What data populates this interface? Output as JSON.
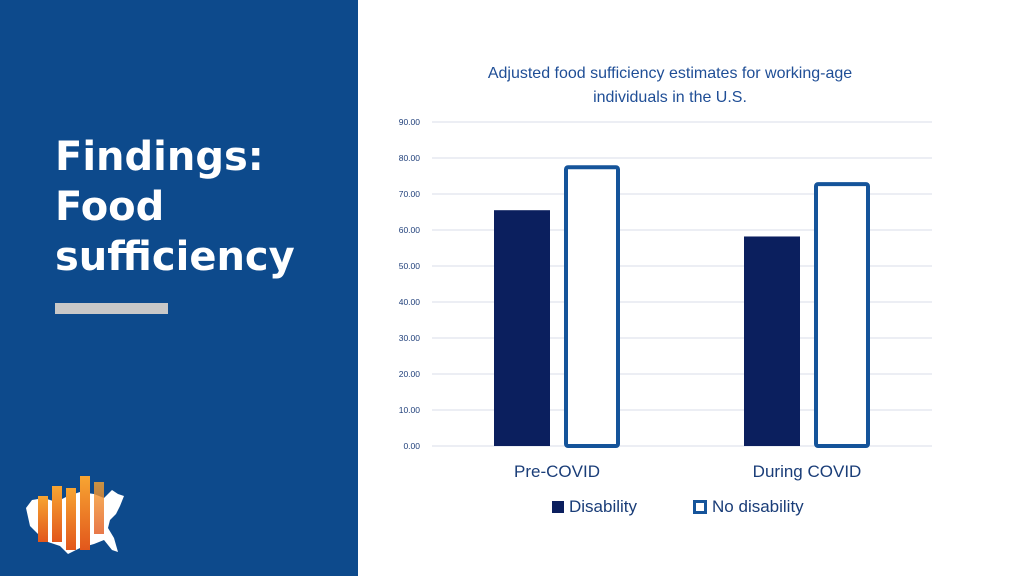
{
  "slide": {
    "title_lines": [
      "Findings:",
      "Food",
      "sufficiency"
    ]
  },
  "colors": {
    "panel": "#0d4a8c",
    "disability_fill": "#0b1f5e",
    "no_disability_stroke": "#15549a",
    "grid": "#d9dee8",
    "accent_bar": "#c8c8c8"
  },
  "chart_data": {
    "type": "bar",
    "title": "Adjusted food sufficiency estimates for working-age individuals in the U.S.",
    "title_lines": [
      "Adjusted food sufficiency estimates for working-age",
      "individuals in the U.S."
    ],
    "categories": [
      "Pre-COVID",
      "During COVID"
    ],
    "series": [
      {
        "name": "Disability",
        "values": [
          65.5,
          58.2
        ]
      },
      {
        "name": "No disability",
        "values": [
          78.0,
          73.3
        ]
      }
    ],
    "ylim": [
      0,
      90
    ],
    "yticks": [
      0,
      10,
      20,
      30,
      40,
      50,
      60,
      70,
      80,
      90
    ],
    "ytick_labels": [
      "0.00",
      "10.00",
      "20.00",
      "30.00",
      "40.00",
      "50.00",
      "60.00",
      "70.00",
      "80.00",
      "90.00"
    ],
    "xlabel": "",
    "ylabel": "",
    "grid": true,
    "legend_position": "bottom"
  }
}
